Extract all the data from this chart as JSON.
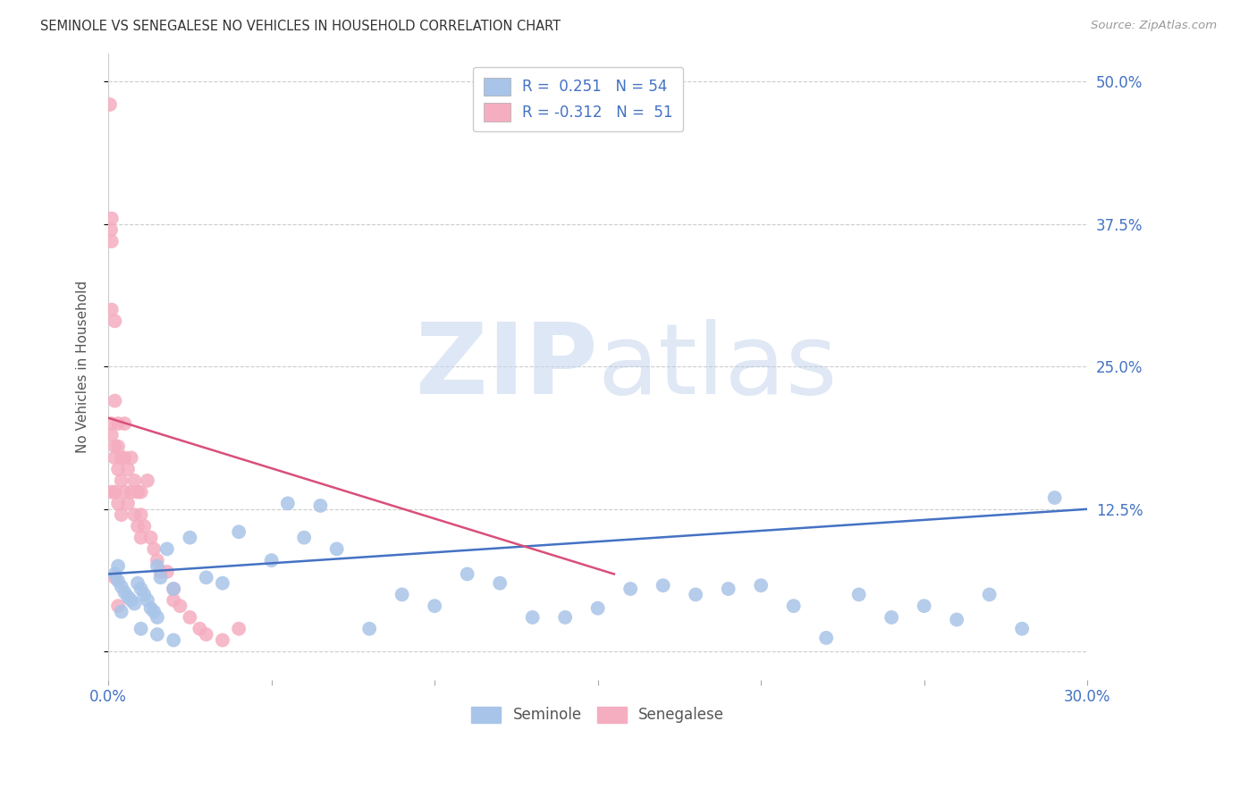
{
  "title": "SEMINOLE VS SENEGALESE NO VEHICLES IN HOUSEHOLD CORRELATION CHART",
  "source": "Source: ZipAtlas.com",
  "ylabel": "No Vehicles in Household",
  "xlim": [
    0.0,
    0.3
  ],
  "ylim": [
    -0.025,
    0.525
  ],
  "yticks_right": [
    0.125,
    0.25,
    0.375,
    0.5
  ],
  "ytick_right_labels": [
    "12.5%",
    "25.0%",
    "37.5%",
    "50.0%"
  ],
  "watermark": "ZIPatlas",
  "blue_color": "#a8c4e8",
  "pink_color": "#f5adc0",
  "trend_blue_color": "#4472c4",
  "trend_pink_color": "#d94f7a",
  "grid_color": "#cccccc",
  "background_color": "#ffffff",
  "right_tick_color": "#4472c4",
  "bottom_tick_color": "#4472c4",
  "seminole_x": [
    0.002,
    0.003,
    0.004,
    0.005,
    0.006,
    0.007,
    0.008,
    0.009,
    0.01,
    0.011,
    0.012,
    0.013,
    0.014,
    0.015,
    0.015,
    0.016,
    0.018,
    0.02,
    0.025,
    0.03,
    0.035,
    0.04,
    0.05,
    0.055,
    0.06,
    0.065,
    0.07,
    0.08,
    0.09,
    0.1,
    0.11,
    0.12,
    0.13,
    0.14,
    0.15,
    0.16,
    0.17,
    0.18,
    0.19,
    0.2,
    0.21,
    0.22,
    0.23,
    0.24,
    0.25,
    0.26,
    0.27,
    0.28,
    0.29,
    0.01,
    0.015,
    0.02,
    0.003,
    0.004
  ],
  "seminole_y": [
    0.068,
    0.062,
    0.057,
    0.052,
    0.048,
    0.045,
    0.042,
    0.06,
    0.055,
    0.05,
    0.045,
    0.038,
    0.035,
    0.03,
    0.075,
    0.065,
    0.09,
    0.055,
    0.1,
    0.065,
    0.06,
    0.105,
    0.08,
    0.13,
    0.1,
    0.128,
    0.09,
    0.02,
    0.05,
    0.04,
    0.068,
    0.06,
    0.03,
    0.03,
    0.038,
    0.055,
    0.058,
    0.05,
    0.055,
    0.058,
    0.04,
    0.012,
    0.05,
    0.03,
    0.04,
    0.028,
    0.05,
    0.02,
    0.135,
    0.02,
    0.015,
    0.01,
    0.075,
    0.035
  ],
  "senegalese_x": [
    0.0005,
    0.0008,
    0.001,
    0.001,
    0.001,
    0.001,
    0.001,
    0.002,
    0.002,
    0.002,
    0.002,
    0.002,
    0.003,
    0.003,
    0.003,
    0.003,
    0.004,
    0.004,
    0.004,
    0.005,
    0.005,
    0.005,
    0.006,
    0.006,
    0.007,
    0.007,
    0.008,
    0.008,
    0.009,
    0.009,
    0.01,
    0.01,
    0.01,
    0.011,
    0.012,
    0.013,
    0.014,
    0.015,
    0.016,
    0.018,
    0.02,
    0.02,
    0.022,
    0.025,
    0.028,
    0.03,
    0.035,
    0.04,
    0.001,
    0.002,
    0.003
  ],
  "senegalese_y": [
    0.48,
    0.37,
    0.38,
    0.36,
    0.3,
    0.2,
    0.19,
    0.29,
    0.22,
    0.18,
    0.17,
    0.14,
    0.2,
    0.18,
    0.16,
    0.13,
    0.17,
    0.15,
    0.12,
    0.2,
    0.17,
    0.14,
    0.16,
    0.13,
    0.17,
    0.14,
    0.15,
    0.12,
    0.14,
    0.11,
    0.14,
    0.12,
    0.1,
    0.11,
    0.15,
    0.1,
    0.09,
    0.08,
    0.07,
    0.07,
    0.055,
    0.045,
    0.04,
    0.03,
    0.02,
    0.015,
    0.01,
    0.02,
    0.14,
    0.065,
    0.04
  ],
  "blue_trend_x": [
    0.0,
    0.3
  ],
  "blue_trend_y": [
    0.068,
    0.125
  ],
  "pink_trend_x": [
    0.0,
    0.155
  ],
  "pink_trend_y": [
    0.205,
    0.068
  ]
}
